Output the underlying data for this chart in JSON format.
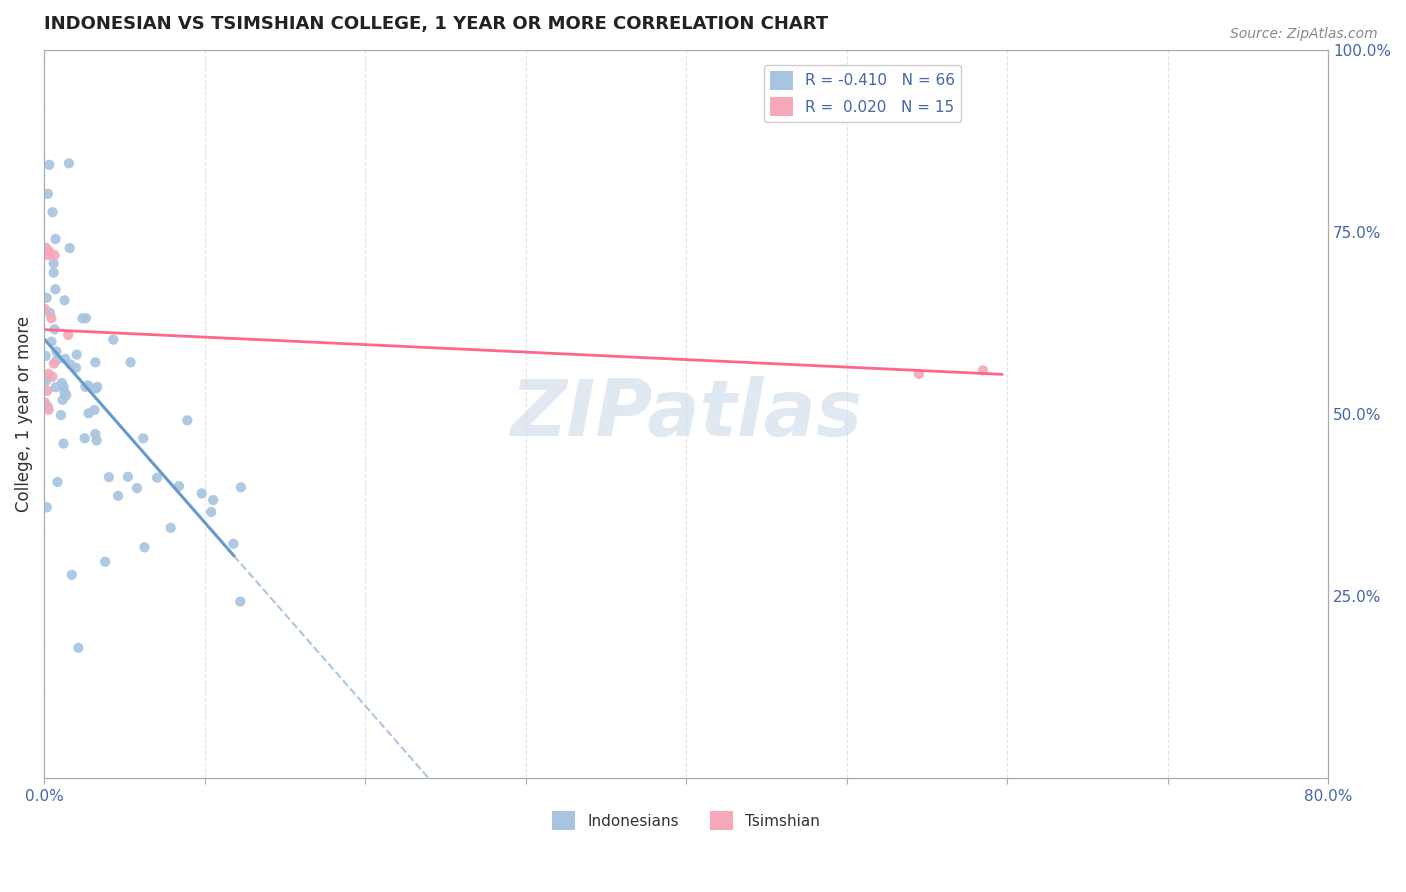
{
  "title": "INDONESIAN VS TSIMSHIAN COLLEGE, 1 YEAR OR MORE CORRELATION CHART",
  "source_text": "Source: ZipAtlas.com",
  "ylabel": "College, 1 year or more",
  "ylabel_right_ticks": [
    "100.0%",
    "75.0%",
    "50.0%",
    "25.0%"
  ],
  "ylabel_right_vals": [
    1.0,
    0.75,
    0.5,
    0.25
  ],
  "xmin": 0.0,
  "xmax": 0.8,
  "ymin": 0.0,
  "ymax": 1.0,
  "R_indonesian": -0.41,
  "N_indonesian": 66,
  "R_tsimshian": 0.02,
  "N_tsimshian": 15,
  "color_indonesian": "#a8c4e0",
  "color_tsimshian": "#f4a8b8",
  "line_color_indonesian": "#6699cc",
  "line_color_tsimshian": "#ff6688",
  "watermark_text": "ZIPatlas",
  "watermark_color": "#c8d8e8",
  "figsize": [
    14.06,
    8.92
  ],
  "dpi": 100
}
